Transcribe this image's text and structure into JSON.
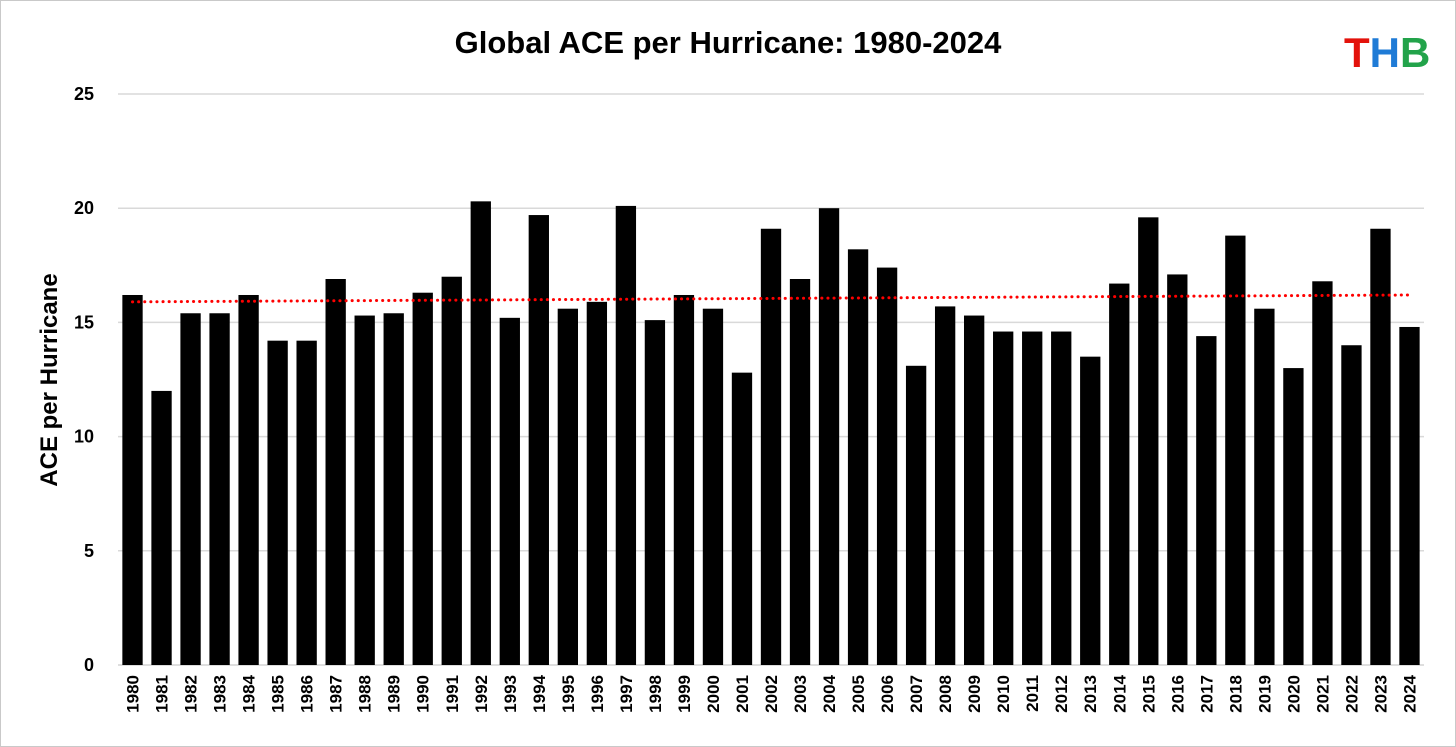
{
  "chart_data": {
    "type": "bar",
    "title": "Global ACE per Hurricane: 1980-2024",
    "xlabel": "",
    "ylabel": "ACE per Hurricane",
    "ylim": [
      0,
      25
    ],
    "yticks": [
      0,
      5,
      10,
      15,
      20,
      25
    ],
    "grid": true,
    "legend": "none",
    "categories": [
      "1980",
      "1981",
      "1982",
      "1983",
      "1984",
      "1985",
      "1986",
      "1987",
      "1988",
      "1989",
      "1990",
      "1991",
      "1992",
      "1993",
      "1994",
      "1995",
      "1996",
      "1997",
      "1998",
      "1999",
      "2000",
      "2001",
      "2002",
      "2003",
      "2004",
      "2005",
      "2006",
      "2007",
      "2008",
      "2009",
      "2010",
      "2011",
      "2012",
      "2013",
      "2014",
      "2015",
      "2016",
      "2017",
      "2018",
      "2019",
      "2020",
      "2021",
      "2022",
      "2023",
      "2024"
    ],
    "values": [
      16.2,
      12.0,
      15.4,
      15.4,
      16.2,
      14.2,
      14.2,
      16.9,
      15.3,
      15.4,
      16.3,
      17.0,
      20.3,
      15.2,
      19.7,
      15.6,
      15.9,
      20.1,
      15.1,
      16.2,
      15.6,
      12.8,
      19.1,
      16.9,
      20.0,
      18.2,
      17.4,
      13.1,
      15.7,
      15.3,
      14.6,
      14.6,
      14.6,
      13.5,
      16.7,
      19.6,
      17.1,
      14.4,
      18.8,
      15.6,
      13.0,
      16.8,
      14.0,
      19.1,
      14.8
    ],
    "trendline": {
      "style": "dotted",
      "color": "#ff0000",
      "start": 15.9,
      "end": 16.2
    },
    "bar_color": "#000000"
  },
  "logo": {
    "letters": [
      {
        "char": "T",
        "color": "#e3120b"
      },
      {
        "char": "H",
        "color": "#1f7bd6"
      },
      {
        "char": "B",
        "color": "#22a34a"
      }
    ]
  }
}
